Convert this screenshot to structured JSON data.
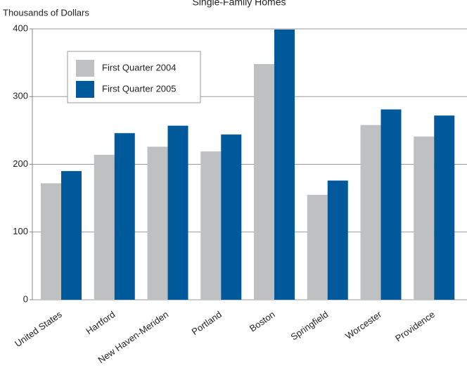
{
  "chart_data": {
    "type": "bar",
    "title": "Single-Family Homes",
    "y_label": "Thousands of Dollars",
    "categories": [
      "United States",
      "Hartford",
      "New Haven-Meriden",
      "Portland",
      "Boston",
      "Springfield",
      "Worcester",
      "Providence"
    ],
    "series": [
      {
        "name": "First Quarter 2004",
        "color": "#bfc0c2",
        "values": [
          172,
          214,
          226,
          219,
          348,
          155,
          258,
          241
        ]
      },
      {
        "name": "First Quarter 2005",
        "color": "#00599a",
        "values": [
          190,
          246,
          257,
          244,
          399,
          176,
          281,
          272
        ]
      }
    ],
    "ylim": [
      0,
      400
    ],
    "yticks": [
      0,
      100,
      200,
      300,
      400
    ],
    "grid": true,
    "legend": "upper left"
  }
}
